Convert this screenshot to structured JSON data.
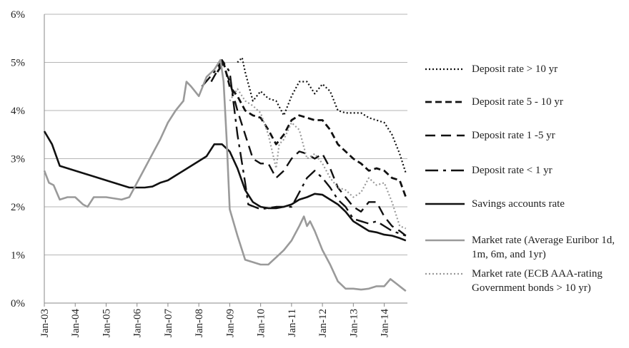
{
  "chart_data": {
    "type": "line",
    "xlim": [
      2003,
      2014.75
    ],
    "xticks": [
      {
        "value": 2003,
        "label": "Jan-03"
      },
      {
        "value": 2004,
        "label": "Jan-04"
      },
      {
        "value": 2005,
        "label": "Jan-05"
      },
      {
        "value": 2006,
        "label": "Jan-06"
      },
      {
        "value": 2007,
        "label": "Jan-07"
      },
      {
        "value": 2008,
        "label": "Jan-08"
      },
      {
        "value": 2009,
        "label": "Jan-09"
      },
      {
        "value": 2010,
        "label": "Jan-10"
      },
      {
        "value": 2011,
        "label": "Jan-11"
      },
      {
        "value": 2012,
        "label": "Jan-12"
      },
      {
        "value": 2013,
        "label": "Jan-13"
      },
      {
        "value": 2014,
        "label": "Jan-14"
      }
    ],
    "ylim": [
      0,
      6
    ],
    "yticks": [
      {
        "value": 0,
        "label": "0%"
      },
      {
        "value": 1,
        "label": "1%"
      },
      {
        "value": 2,
        "label": "2%"
      },
      {
        "value": 3,
        "label": "3%"
      },
      {
        "value": 4,
        "label": "4%"
      },
      {
        "value": 5,
        "label": "5%"
      },
      {
        "value": 6,
        "label": "6%"
      }
    ],
    "grid": true,
    "legend": "right",
    "series": [
      {
        "name": "Deposit rate > 10 yr",
        "color": "#111111",
        "line_style": "dotted",
        "x": [
          2009.25,
          2009.4,
          2009.5,
          2009.75,
          2010.0,
          2010.25,
          2010.5,
          2010.75,
          2011.0,
          2011.25,
          2011.5,
          2011.75,
          2012.0,
          2012.25,
          2012.5,
          2012.75,
          2013.0,
          2013.25,
          2013.5,
          2013.75,
          2014.0,
          2014.25,
          2014.5,
          2014.7
        ],
        "values": [
          5.0,
          5.1,
          4.8,
          4.2,
          4.4,
          4.25,
          4.2,
          3.9,
          4.3,
          4.6,
          4.6,
          4.35,
          4.55,
          4.4,
          4.0,
          3.95,
          3.95,
          3.95,
          3.85,
          3.8,
          3.75,
          3.5,
          3.1,
          2.7
        ]
      },
      {
        "name": "Deposit rate 5 - 10 yr",
        "color": "#111111",
        "line_style": "dashed",
        "x": [
          2008.6,
          2008.8,
          2009.0,
          2009.25,
          2009.5,
          2009.75,
          2010.0,
          2010.25,
          2010.5,
          2010.75,
          2011.0,
          2011.25,
          2011.5,
          2011.75,
          2012.0,
          2012.25,
          2012.5,
          2012.75,
          2013.0,
          2013.25,
          2013.5,
          2013.75,
          2014.0,
          2014.25,
          2014.5,
          2014.7
        ],
        "values": [
          4.8,
          5.0,
          4.5,
          4.3,
          4.0,
          3.9,
          3.85,
          3.6,
          3.3,
          3.5,
          3.8,
          3.9,
          3.85,
          3.8,
          3.8,
          3.6,
          3.3,
          3.15,
          3.0,
          2.9,
          2.75,
          2.8,
          2.75,
          2.6,
          2.55,
          2.2
        ]
      },
      {
        "name": "Deposit rate 1 -5  yr",
        "color": "#111111",
        "line_style": "long-dashed",
        "x": [
          2008.4,
          2008.75,
          2009.0,
          2009.25,
          2009.5,
          2009.75,
          2010.0,
          2010.25,
          2010.5,
          2010.75,
          2011.0,
          2011.25,
          2011.5,
          2011.75,
          2012.0,
          2012.25,
          2012.5,
          2012.75,
          2013.0,
          2013.25,
          2013.5,
          2013.75,
          2014.0,
          2014.25,
          2014.5,
          2014.7
        ],
        "values": [
          4.6,
          5.0,
          4.6,
          4.0,
          3.5,
          3.0,
          2.9,
          2.9,
          2.6,
          2.75,
          3.0,
          3.15,
          3.1,
          3.0,
          3.1,
          2.8,
          2.4,
          2.2,
          2.0,
          1.9,
          2.1,
          2.1,
          1.8,
          1.6,
          1.5,
          1.4
        ]
      },
      {
        "name": "Deposit rate < 1 yr",
        "color": "#111111",
        "line_style": "dash-dot",
        "x": [
          2008.1,
          2008.5,
          2008.75,
          2009.0,
          2009.25,
          2009.5,
          2009.6,
          2010.0,
          2010.5,
          2011.0,
          2011.25,
          2011.5,
          2011.75,
          2012.0,
          2012.25,
          2012.5,
          2012.75,
          2013.0,
          2013.5,
          2013.75,
          2014.0,
          2014.25,
          2014.7
        ],
        "values": [
          4.5,
          4.8,
          5.05,
          4.8,
          3.5,
          2.5,
          2.05,
          1.95,
          2.0,
          2.0,
          2.3,
          2.6,
          2.75,
          2.6,
          2.4,
          2.15,
          2.0,
          1.75,
          1.65,
          1.7,
          1.6,
          1.5,
          1.4
        ]
      },
      {
        "name": "Savings accounts rate",
        "color": "#111111",
        "line_style": "solid",
        "x": [
          2003.0,
          2003.25,
          2003.5,
          2003.75,
          2004.0,
          2004.25,
          2004.5,
          2004.75,
          2005.0,
          2005.25,
          2005.5,
          2005.75,
          2006.0,
          2006.25,
          2006.5,
          2006.75,
          2007.0,
          2007.25,
          2007.5,
          2007.75,
          2008.0,
          2008.25,
          2008.5,
          2008.75,
          2009.0,
          2009.25,
          2009.5,
          2009.75,
          2010.0,
          2010.25,
          2010.5,
          2010.75,
          2011.0,
          2011.25,
          2011.5,
          2011.75,
          2012.0,
          2012.25,
          2012.5,
          2012.75,
          2013.0,
          2013.25,
          2013.5,
          2013.75,
          2014.0,
          2014.25,
          2014.5,
          2014.7
        ],
        "values": [
          3.57,
          3.3,
          2.85,
          2.8,
          2.75,
          2.7,
          2.65,
          2.6,
          2.55,
          2.5,
          2.45,
          2.4,
          2.4,
          2.4,
          2.42,
          2.5,
          2.55,
          2.65,
          2.75,
          2.85,
          2.95,
          3.05,
          3.3,
          3.3,
          3.15,
          2.8,
          2.35,
          2.1,
          2.0,
          1.97,
          1.97,
          2.0,
          2.05,
          2.15,
          2.2,
          2.27,
          2.25,
          2.15,
          2.05,
          1.9,
          1.7,
          1.6,
          1.5,
          1.47,
          1.42,
          1.4,
          1.35,
          1.3
        ]
      },
      {
        "name": "Market rate (Average Euribor 1d, 1m, 6m, and 1yr)",
        "color": "#9a9a9a",
        "line_style": "solid",
        "x": [
          2003.0,
          2003.15,
          2003.3,
          2003.5,
          2003.75,
          2004.0,
          2004.25,
          2004.4,
          2004.6,
          2005.0,
          2005.5,
          2005.75,
          2006.0,
          2006.25,
          2006.5,
          2006.75,
          2007.0,
          2007.25,
          2007.5,
          2007.6,
          2007.75,
          2008.0,
          2008.25,
          2008.5,
          2008.7,
          2008.8,
          2008.9,
          2009.0,
          2009.25,
          2009.5,
          2009.75,
          2010.0,
          2010.25,
          2010.5,
          2010.75,
          2011.0,
          2011.25,
          2011.4,
          2011.5,
          2011.6,
          2011.75,
          2012.0,
          2012.25,
          2012.5,
          2012.75,
          2013.0,
          2013.25,
          2013.5,
          2013.75,
          2014.0,
          2014.2,
          2014.4,
          2014.6,
          2014.7
        ],
        "values": [
          2.75,
          2.5,
          2.45,
          2.15,
          2.2,
          2.2,
          2.05,
          2.0,
          2.2,
          2.2,
          2.15,
          2.2,
          2.5,
          2.8,
          3.1,
          3.4,
          3.75,
          4.0,
          4.2,
          4.6,
          4.5,
          4.3,
          4.7,
          4.85,
          5.05,
          4.6,
          3.4,
          1.95,
          1.4,
          0.9,
          0.85,
          0.8,
          0.8,
          0.95,
          1.1,
          1.3,
          1.6,
          1.8,
          1.6,
          1.7,
          1.5,
          1.1,
          0.8,
          0.45,
          0.3,
          0.3,
          0.28,
          0.3,
          0.35,
          0.35,
          0.5,
          0.4,
          0.3,
          0.25
        ]
      },
      {
        "name": "Market rate (ECB AAA-rating Government bonds > 10 yr)",
        "color": "#9a9a9a",
        "line_style": "dotted",
        "x": [
          2009.0,
          2009.25,
          2009.5,
          2009.75,
          2010.0,
          2010.25,
          2010.5,
          2010.6,
          2010.75,
          2011.0,
          2011.25,
          2011.5,
          2011.75,
          2012.0,
          2012.25,
          2012.5,
          2012.75,
          2013.0,
          2013.25,
          2013.5,
          2013.75,
          2014.0,
          2014.25,
          2014.5,
          2014.7
        ],
        "values": [
          4.2,
          4.45,
          4.2,
          4.1,
          3.95,
          3.5,
          2.8,
          3.3,
          3.4,
          3.75,
          3.6,
          3.0,
          3.1,
          2.9,
          2.6,
          2.4,
          2.35,
          2.2,
          2.3,
          2.6,
          2.45,
          2.5,
          2.1,
          1.6,
          1.55
        ]
      }
    ]
  }
}
